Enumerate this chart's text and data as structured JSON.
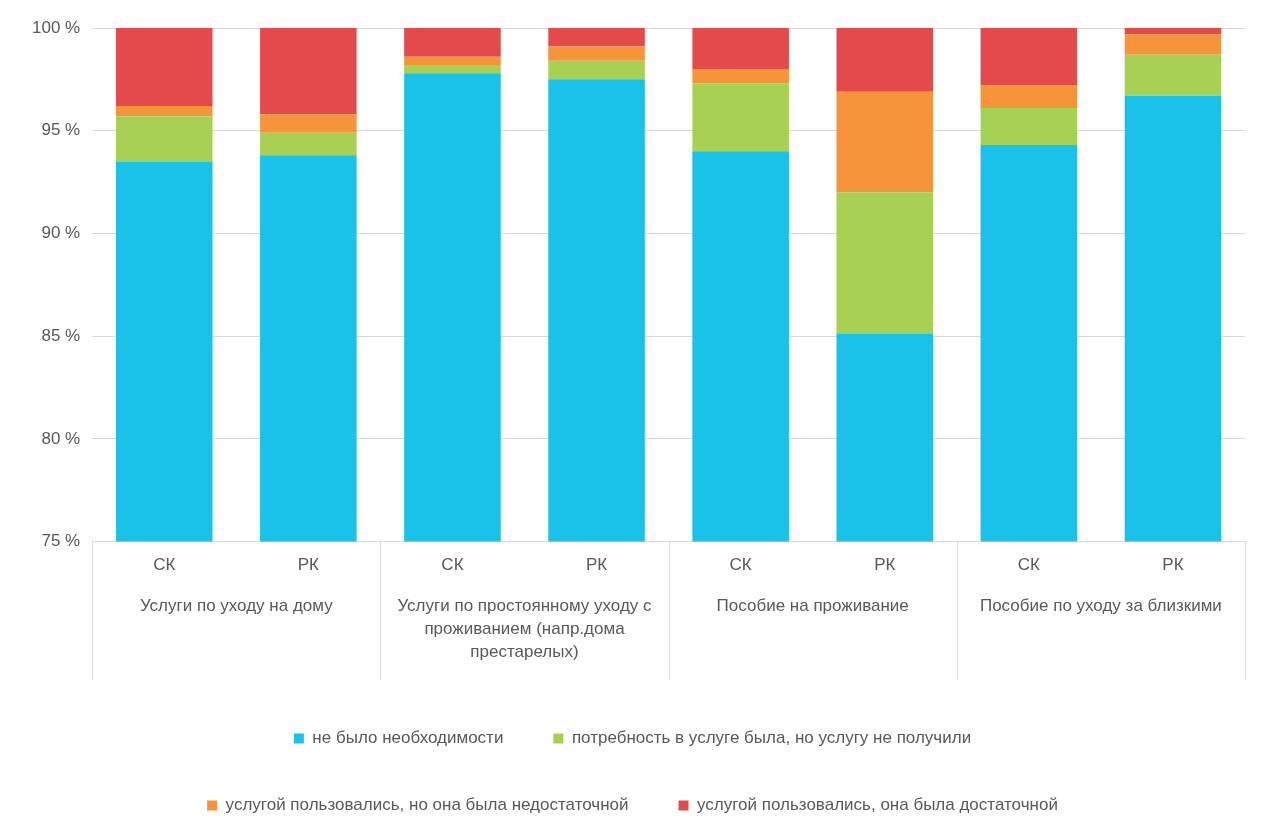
{
  "chart_data": {
    "type": "bar",
    "stacked": true,
    "categories": [
      "СК",
      "РК",
      "СК",
      "РК",
      "СК",
      "РК",
      "СК",
      "РК"
    ],
    "series": [
      {
        "name": "не было необходимости",
        "color": "#1ac1e8",
        "values": [
          93.5,
          93.8,
          97.8,
          97.5,
          94.0,
          85.1,
          94.3,
          96.7
        ]
      },
      {
        "name": "потребность в услуге была, но услугу не получили",
        "color": "#a8d052",
        "base": [
          93.5,
          93.8,
          97.8,
          97.5,
          94.0,
          85.1,
          94.3,
          96.7
        ],
        "values": [
          2.2,
          1.1,
          0.4,
          0.9,
          3.3,
          6.9,
          1.8,
          2.0
        ]
      },
      {
        "name": "услугой пользовались, но она была недостаточной",
        "color": "#f6943a",
        "base": [
          95.7,
          94.9,
          98.2,
          98.4,
          97.3,
          92.0,
          96.1,
          98.7
        ],
        "values": [
          0.5,
          0.9,
          0.4,
          0.7,
          0.7,
          4.9,
          1.1,
          1.0
        ]
      },
      {
        "name": "услугой пользовались, она была достаточной",
        "color": "#e44a4b",
        "base": [
          96.2,
          95.8,
          98.6,
          99.1,
          98.0,
          96.9,
          97.2,
          99.7
        ],
        "values": [
          3.8,
          4.2,
          1.4,
          0.9,
          2.0,
          3.1,
          2.8,
          0.3
        ]
      }
    ],
    "ylim": [
      75,
      100
    ],
    "yticks": [
      {
        "value": 75,
        "label": "75 %"
      },
      {
        "value": 80,
        "label": "80 %"
      },
      {
        "value": 85,
        "label": "85 %"
      },
      {
        "value": 90,
        "label": "90 %"
      },
      {
        "value": 95,
        "label": "95 %"
      },
      {
        "value": 100,
        "label": "100 %"
      }
    ],
    "grid": "y",
    "legend": "bottom",
    "annotations": [
      "Услуги по уходу на дому",
      "Услуги по простоянному уходу с проживанием (напр.дома престарелых)",
      "Пособие на проживание",
      "Пособие по уходу за близкими"
    ]
  }
}
